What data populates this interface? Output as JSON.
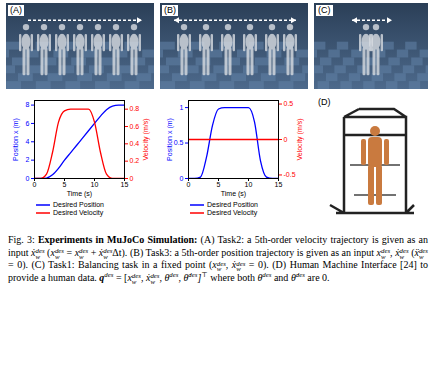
{
  "panels": {
    "A": "(A)",
    "B": "(B)",
    "C": "(C)",
    "D": "(D)"
  },
  "chart_data": [
    {
      "type": "line",
      "x": [
        0,
        1,
        2,
        3,
        4,
        5,
        6,
        7,
        8,
        9,
        10,
        11,
        12,
        13,
        14,
        15
      ],
      "xlim": [
        0,
        15
      ],
      "xticks": [
        0,
        5,
        10,
        15
      ],
      "x_label": "Time (s)",
      "y_label": "Position x (m)",
      "ylim": [
        0,
        8.5
      ],
      "yticks": [
        0,
        2,
        4,
        6,
        8
      ],
      "y2_label": "Velocity (m/s)",
      "y2lim": [
        0,
        0.9
      ],
      "y2ticks": [
        0,
        0.2,
        0.4,
        0.6,
        0.8
      ],
      "grid": false,
      "legend": "bottom",
      "series": [
        {
          "name": "Desired Position",
          "color": "#0000ff",
          "values": [
            0,
            0,
            0.05,
            0.4,
            1.1,
            2,
            2.8,
            3.6,
            4.4,
            5.2,
            6,
            6.8,
            7.5,
            7.9,
            8,
            8
          ]
        },
        {
          "name": "Desired Velocity",
          "color": "#ff0000",
          "axis": "y2",
          "values": [
            0,
            0,
            0.05,
            0.3,
            0.65,
            0.78,
            0.8,
            0.8,
            0.8,
            0.8,
            0.65,
            0.3,
            0.05,
            0,
            0,
            0
          ]
        }
      ]
    },
    {
      "type": "line",
      "x": [
        0,
        1,
        2,
        3,
        4,
        5,
        6,
        7,
        8,
        9,
        10,
        11,
        12,
        13,
        14,
        15
      ],
      "xlim": [
        0,
        15
      ],
      "xticks": [
        0,
        5,
        10,
        15
      ],
      "x_label": "Time (s)",
      "y_label": "Position x (m)",
      "ylim": [
        0,
        1.1
      ],
      "yticks": [
        0,
        0.5,
        1
      ],
      "y2_label": "Velocity (m/s)",
      "y2lim": [
        -0.55,
        0.55
      ],
      "y2ticks": [
        {
          "value": -0.5,
          "label": "-0.5"
        },
        0,
        0.5
      ],
      "grid": false,
      "legend": "bottom",
      "series": [
        {
          "name": "Desired Position",
          "color": "#0000ff",
          "values": [
            0,
            0,
            0.02,
            0.3,
            0.75,
            0.98,
            1,
            1,
            1,
            1,
            1,
            0.8,
            0.25,
            0.02,
            0,
            0
          ]
        },
        {
          "name": "Desired Velocity",
          "color": "#ff0000",
          "axis": "y2",
          "values": [
            0,
            0,
            0,
            0,
            0,
            0,
            0,
            0,
            0,
            0,
            0,
            0,
            0,
            0,
            0,
            0
          ]
        }
      ]
    }
  ],
  "caption": {
    "label": "Fig. 3:",
    "title": "Experiments in MuJoCo Simulation:",
    "body": [
      " (A) Task2: a 5th-order velocity trajectory is given as an input ",
      {
        "base": "ẋ",
        "sub": "w",
        "sup": "des"
      },
      " (",
      {
        "base": "x",
        "sub": "w",
        "sup": "des"
      },
      " = ",
      {
        "base": "x",
        "sub": "w",
        "sup": "des"
      },
      " + ",
      {
        "base": "ẋ",
        "sub": "w",
        "sup": "des"
      },
      "Δt). (B) Task3: a 5th-order position trajectory is given as an input ",
      {
        "base": "x",
        "sub": "w",
        "sup": "des"
      },
      ", ",
      {
        "base": "ẋ",
        "sub": "w",
        "sup": "des"
      },
      " (",
      {
        "base": "ẍ",
        "sub": "w",
        "sup": "des"
      },
      " = 0). (C) Task1: Balancing task in a fixed point (",
      {
        "base": "x",
        "sub": "w",
        "sup": "des"
      },
      ", ",
      {
        "base": "ẋ",
        "sub": "w",
        "sup": "des"
      },
      " = 0). (D) Human Machine Interface [24] to provide a human data. ",
      {
        "base": "q",
        "sup": "des",
        "style": "bold"
      },
      " = [",
      {
        "base": "x",
        "sub": "w",
        "sup": "des"
      },
      ", ",
      {
        "base": "ẋ",
        "sub": "w",
        "sup": "des"
      },
      ", ",
      {
        "base": "θ",
        "sup": "des"
      },
      ", ",
      {
        "base": "θ̇",
        "sup": "des"
      },
      {
        "base": "]",
        "sup": "⊤"
      },
      " where both ",
      {
        "base": "θ",
        "sup": "des"
      },
      " and ",
      {
        "base": "θ̇",
        "sup": "des"
      },
      " are 0."
    ]
  }
}
